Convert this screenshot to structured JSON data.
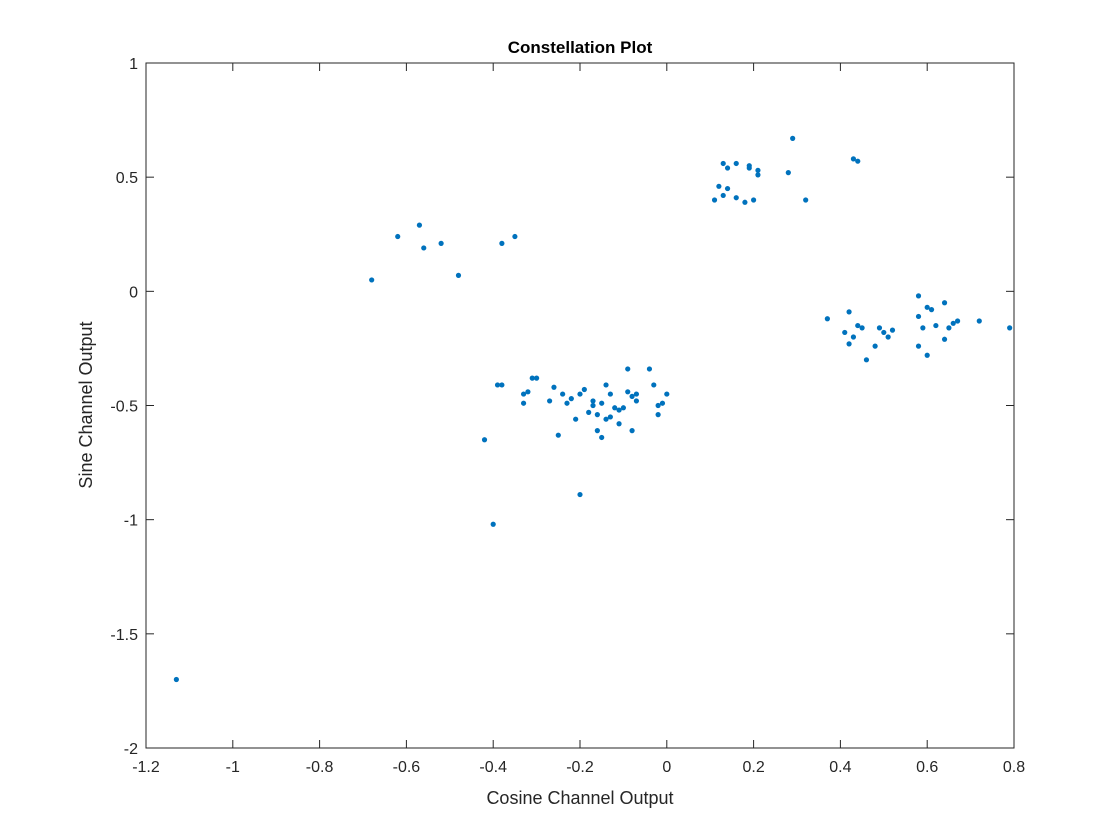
{
  "chart_data": {
    "type": "scatter",
    "title": "Constellation Plot",
    "xlabel": "Cosine Channel Output",
    "ylabel": "Sine Channel Output",
    "xlim": [
      -1.2,
      0.8
    ],
    "ylim": [
      -2,
      1
    ],
    "xticks": [
      -1.2,
      -1,
      -0.8,
      -0.6,
      -0.4,
      -0.2,
      0,
      0.2,
      0.4,
      0.6,
      0.8
    ],
    "yticks": [
      -2,
      -1.5,
      -1,
      -0.5,
      0,
      0.5,
      1
    ],
    "xtick_labels": [
      "-1.2",
      "-1",
      "-0.8",
      "-0.6",
      "-0.4",
      "-0.2",
      "0",
      "0.2",
      "0.4",
      "0.6",
      "0.8"
    ],
    "ytick_labels": [
      "-2",
      "-1.5",
      "-1",
      "-0.5",
      "0",
      "0.5",
      "1"
    ],
    "grid": false,
    "marker_color": "#0072BD",
    "series": [
      {
        "points": [
          [
            -1.13,
            -1.7
          ],
          [
            -0.4,
            -1.02
          ],
          [
            -0.2,
            -0.89
          ],
          [
            -0.42,
            -0.65
          ],
          [
            -0.68,
            0.05
          ],
          [
            -0.62,
            0.24
          ],
          [
            -0.57,
            0.29
          ],
          [
            -0.56,
            0.19
          ],
          [
            -0.52,
            0.21
          ],
          [
            -0.48,
            0.07
          ],
          [
            -0.38,
            0.21
          ],
          [
            -0.35,
            0.24
          ],
          [
            0.11,
            0.4
          ],
          [
            0.12,
            0.46
          ],
          [
            0.13,
            0.42
          ],
          [
            0.13,
            0.56
          ],
          [
            0.14,
            0.54
          ],
          [
            0.14,
            0.45
          ],
          [
            0.16,
            0.56
          ],
          [
            0.16,
            0.41
          ],
          [
            0.18,
            0.39
          ],
          [
            0.19,
            0.55
          ],
          [
            0.19,
            0.54
          ],
          [
            0.2,
            0.4
          ],
          [
            0.21,
            0.53
          ],
          [
            0.21,
            0.51
          ],
          [
            0.28,
            0.52
          ],
          [
            0.29,
            0.67
          ],
          [
            0.32,
            0.4
          ],
          [
            0.43,
            0.58
          ],
          [
            0.44,
            0.57
          ],
          [
            -0.39,
            -0.41
          ],
          [
            -0.38,
            -0.41
          ],
          [
            -0.33,
            -0.49
          ],
          [
            -0.33,
            -0.45
          ],
          [
            -0.32,
            -0.44
          ],
          [
            -0.31,
            -0.38
          ],
          [
            -0.3,
            -0.38
          ],
          [
            -0.27,
            -0.48
          ],
          [
            -0.26,
            -0.42
          ],
          [
            -0.25,
            -0.63
          ],
          [
            -0.24,
            -0.45
          ],
          [
            -0.23,
            -0.49
          ],
          [
            -0.22,
            -0.47
          ],
          [
            -0.21,
            -0.56
          ],
          [
            -0.2,
            -0.45
          ],
          [
            -0.19,
            -0.43
          ],
          [
            -0.18,
            -0.53
          ],
          [
            -0.17,
            -0.5
          ],
          [
            -0.17,
            -0.48
          ],
          [
            -0.16,
            -0.54
          ],
          [
            -0.16,
            -0.61
          ],
          [
            -0.15,
            -0.64
          ],
          [
            -0.15,
            -0.49
          ],
          [
            -0.14,
            -0.56
          ],
          [
            -0.14,
            -0.41
          ],
          [
            -0.13,
            -0.45
          ],
          [
            -0.13,
            -0.55
          ],
          [
            -0.12,
            -0.51
          ],
          [
            -0.11,
            -0.58
          ],
          [
            -0.11,
            -0.52
          ],
          [
            -0.1,
            -0.51
          ],
          [
            -0.09,
            -0.44
          ],
          [
            -0.09,
            -0.34
          ],
          [
            -0.08,
            -0.61
          ],
          [
            -0.08,
            -0.46
          ],
          [
            -0.07,
            -0.48
          ],
          [
            -0.07,
            -0.45
          ],
          [
            -0.04,
            -0.34
          ],
          [
            -0.03,
            -0.41
          ],
          [
            -0.02,
            -0.54
          ],
          [
            -0.02,
            -0.5
          ],
          [
            -0.01,
            -0.49
          ],
          [
            0.0,
            -0.45
          ],
          [
            0.37,
            -0.12
          ],
          [
            0.41,
            -0.18
          ],
          [
            0.42,
            -0.23
          ],
          [
            0.42,
            -0.09
          ],
          [
            0.43,
            -0.2
          ],
          [
            0.44,
            -0.15
          ],
          [
            0.45,
            -0.16
          ],
          [
            0.46,
            -0.3
          ],
          [
            0.48,
            -0.24
          ],
          [
            0.49,
            -0.16
          ],
          [
            0.5,
            -0.18
          ],
          [
            0.51,
            -0.2
          ],
          [
            0.52,
            -0.17
          ],
          [
            0.58,
            -0.02
          ],
          [
            0.58,
            -0.11
          ],
          [
            0.58,
            -0.24
          ],
          [
            0.59,
            -0.16
          ],
          [
            0.6,
            -0.28
          ],
          [
            0.6,
            -0.07
          ],
          [
            0.61,
            -0.08
          ],
          [
            0.62,
            -0.15
          ],
          [
            0.64,
            -0.21
          ],
          [
            0.64,
            -0.05
          ],
          [
            0.65,
            -0.16
          ],
          [
            0.66,
            -0.14
          ],
          [
            0.67,
            -0.13
          ],
          [
            0.72,
            -0.13
          ],
          [
            0.79,
            -0.16
          ]
        ]
      }
    ]
  }
}
